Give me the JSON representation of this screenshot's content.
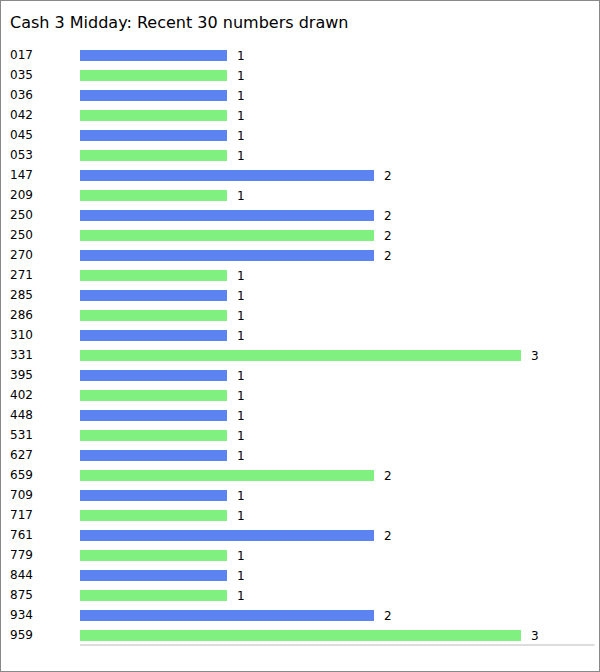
{
  "chart_data": {
    "type": "bar",
    "title": "Cash 3 Midday: Recent 30 numbers drawn",
    "orientation": "horizontal",
    "categories": [
      "017",
      "035",
      "036",
      "042",
      "045",
      "053",
      "147",
      "209",
      "250",
      "250",
      "270",
      "271",
      "285",
      "286",
      "310",
      "331",
      "395",
      "402",
      "448",
      "531",
      "627",
      "659",
      "709",
      "717",
      "761",
      "779",
      "844",
      "875",
      "934",
      "959"
    ],
    "values": [
      1,
      1,
      1,
      1,
      1,
      1,
      2,
      1,
      2,
      2,
      2,
      1,
      1,
      1,
      1,
      3,
      1,
      1,
      1,
      1,
      1,
      2,
      1,
      1,
      2,
      1,
      1,
      1,
      2,
      3
    ],
    "colors": [
      "#5b84f0",
      "#80f080",
      "#5b84f0",
      "#80f080",
      "#5b84f0",
      "#80f080",
      "#5b84f0",
      "#80f080",
      "#5b84f0",
      "#80f080",
      "#5b84f0",
      "#80f080",
      "#5b84f0",
      "#80f080",
      "#5b84f0",
      "#80f080",
      "#5b84f0",
      "#80f080",
      "#5b84f0",
      "#80f080",
      "#5b84f0",
      "#80f080",
      "#5b84f0",
      "#80f080",
      "#5b84f0",
      "#80f080",
      "#5b84f0",
      "#80f080",
      "#5b84f0",
      "#80f080"
    ],
    "xlim": [
      0,
      3.5
    ],
    "grid": false,
    "data_labels": true,
    "tick_labels": "y"
  }
}
